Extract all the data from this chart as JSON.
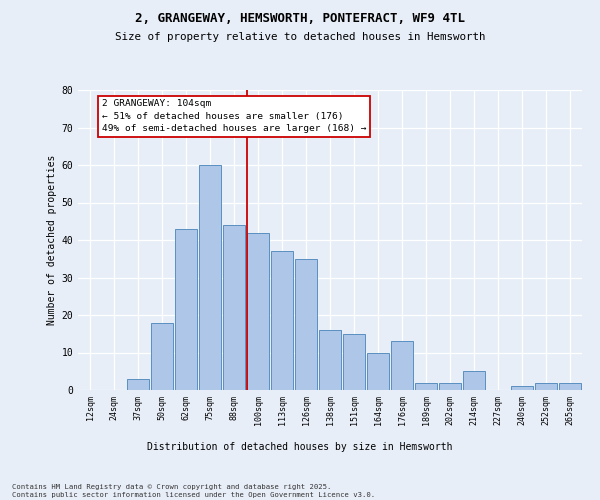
{
  "title1": "2, GRANGEWAY, HEMSWORTH, PONTEFRACT, WF9 4TL",
  "title2": "Size of property relative to detached houses in Hemsworth",
  "xlabel": "Distribution of detached houses by size in Hemsworth",
  "ylabel": "Number of detached properties",
  "categories": [
    "12sqm",
    "24sqm",
    "37sqm",
    "50sqm",
    "62sqm",
    "75sqm",
    "88sqm",
    "100sqm",
    "113sqm",
    "126sqm",
    "138sqm",
    "151sqm",
    "164sqm",
    "176sqm",
    "189sqm",
    "202sqm",
    "214sqm",
    "227sqm",
    "240sqm",
    "252sqm",
    "265sqm"
  ],
  "values": [
    0,
    0,
    3,
    18,
    43,
    60,
    44,
    42,
    37,
    35,
    16,
    15,
    10,
    13,
    2,
    2,
    5,
    0,
    1,
    2,
    2
  ],
  "bar_color": "#aec6e8",
  "bar_edge_color": "#5a8fc0",
  "vline_color": "#cc0000",
  "vline_index": 7,
  "annotation_title": "2 GRANGEWAY: 104sqm",
  "annotation_line1": "← 51% of detached houses are smaller (176)",
  "annotation_line2": "49% of semi-detached houses are larger (168) →",
  "ann_box_facecolor": "#ffffff",
  "ann_box_edgecolor": "#cc0000",
  "ylim": [
    0,
    80
  ],
  "yticks": [
    0,
    10,
    20,
    30,
    40,
    50,
    60,
    70,
    80
  ],
  "background_color": "#e8eef8",
  "grid_color": "#ffffff",
  "footer1": "Contains HM Land Registry data © Crown copyright and database right 2025.",
  "footer2": "Contains public sector information licensed under the Open Government Licence v3.0."
}
